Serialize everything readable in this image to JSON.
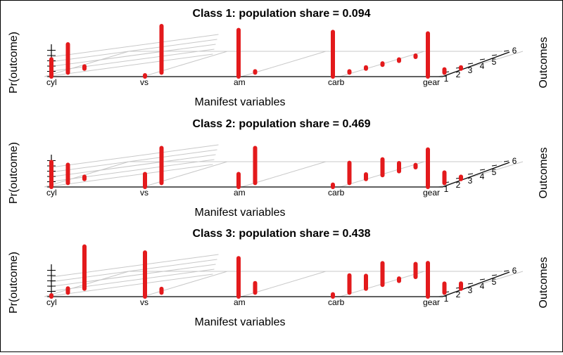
{
  "colors": {
    "points": "#e31a1c",
    "grid": "#c8c8c8",
    "axis": "#000000"
  },
  "chart_data": [
    {
      "type": "scatter",
      "title": "Class 1: population share = 0.094",
      "xlabel": "Manifest variables",
      "ylabel": "Outcomes",
      "zlabel": "Pr(outcome)",
      "variables": [
        "cyl",
        "vs",
        "am",
        "carb",
        "gear"
      ],
      "outcomes": [
        "1",
        "2",
        "3",
        "4",
        "5",
        "6"
      ],
      "zlim": [
        0,
        1
      ],
      "grid": true,
      "probs": {
        "cyl": [
          0.36,
          0.59,
          0.05
        ],
        "vs": [
          0.03,
          0.97
        ],
        "am": [
          0.97,
          0.03
        ],
        "carb": [
          0.93,
          0.03,
          0.03,
          0.03,
          0.03,
          0.03
        ],
        "gear": [
          0.9,
          0.07,
          0.03
        ]
      }
    },
    {
      "type": "scatter",
      "title": "Class 2: population share = 0.469",
      "xlabel": "Manifest variables",
      "ylabel": "Outcomes",
      "zlabel": "Pr(outcome)",
      "variables": [
        "cyl",
        "vs",
        "am",
        "carb",
        "gear"
      ],
      "outcomes": [
        "1",
        "2",
        "3",
        "4",
        "5",
        "6"
      ],
      "zlim": [
        0,
        1
      ],
      "grid": true,
      "probs": {
        "cyl": [
          0.52,
          0.38,
          0.05
        ],
        "vs": [
          0.27,
          0.73
        ],
        "am": [
          0.27,
          0.73
        ],
        "carb": [
          0.05,
          0.42,
          0.1,
          0.33,
          0.17,
          0.05
        ],
        "gear": [
          0.78,
          0.22,
          0.05
        ]
      }
    },
    {
      "type": "scatter",
      "title": "Class 3: population share = 0.438",
      "xlabel": "Manifest variables",
      "ylabel": "Outcomes",
      "zlabel": "Pr(outcome)",
      "variables": [
        "cyl",
        "vs",
        "am",
        "carb",
        "gear"
      ],
      "outcomes": [
        "1",
        "2",
        "3",
        "4",
        "5",
        "6"
      ],
      "zlim": [
        0,
        1
      ],
      "grid": true,
      "probs": {
        "cyl": [
          0.03,
          0.09,
          0.88
        ],
        "vs": [
          0.92,
          0.08
        ],
        "am": [
          0.8,
          0.2
        ],
        "carb": [
          0.05,
          0.36,
          0.27,
          0.45,
          0.05,
          0.27
        ],
        "gear": [
          0.7,
          0.19,
          0.11
        ]
      }
    }
  ]
}
